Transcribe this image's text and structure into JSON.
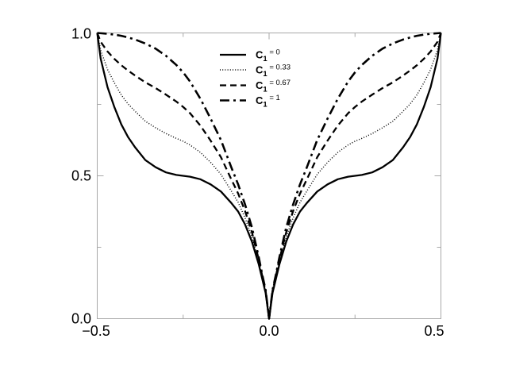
{
  "figure": {
    "background": "#ffffff",
    "frame_color": "#a8a8a8",
    "curve_color": "#000000",
    "text_color": "#000000"
  },
  "axes": {
    "x": {
      "min": -0.5,
      "max": 0.5,
      "major_ticks": [
        -0.5,
        0,
        0.5
      ],
      "minor_ticks": [
        -0.25,
        0.25
      ],
      "tick_labels": [
        "−0.5",
        "0.0",
        "0.5"
      ]
    },
    "y": {
      "min": 0,
      "max": 1,
      "major_ticks": [
        0,
        0.5,
        1
      ],
      "minor_ticks": [
        0.25,
        0.75
      ],
      "tick_labels": [
        "0.0",
        "0.5",
        "1.0"
      ]
    }
  },
  "legend": {
    "items": [
      {
        "style": "solid",
        "symbol": "C",
        "subscript": "1",
        "value": "= 0"
      },
      {
        "style": "dotted",
        "symbol": "C",
        "subscript": "1",
        "value": "= 0.33"
      },
      {
        "style": "dashed",
        "symbol": "C",
        "subscript": "1",
        "value": "= 0.67"
      },
      {
        "style": "dashdot",
        "symbol": "C",
        "subscript": "1",
        "value": "= 1"
      }
    ]
  },
  "chart_data": {
    "type": "line",
    "title": "",
    "xlabel": "",
    "ylabel": "",
    "grid": false,
    "legend_position": "upper-center",
    "xlim": [
      -0.5,
      0.5
    ],
    "ylim": [
      0,
      1
    ],
    "x": [
      -0.5,
      -0.49,
      -0.48,
      -0.47,
      -0.45,
      -0.43,
      -0.41,
      -0.39,
      -0.36,
      -0.33,
      -0.3,
      -0.27,
      -0.25,
      -0.23,
      -0.2,
      -0.17,
      -0.14,
      -0.11,
      -0.09,
      -0.07,
      -0.05,
      -0.03,
      -0.02,
      -0.01,
      0,
      0.01,
      0.02,
      0.03,
      0.05,
      0.07,
      0.09,
      0.11,
      0.14,
      0.17,
      0.2,
      0.23,
      0.25,
      0.27,
      0.3,
      0.33,
      0.36,
      0.39,
      0.41,
      0.43,
      0.45,
      0.47,
      0.48,
      0.49,
      0.5
    ],
    "series": [
      {
        "name": "C1 = 0",
        "style": "solid",
        "values": [
          1,
          0.91,
          0.86,
          0.81,
          0.74,
          0.68,
          0.635,
          0.6,
          0.555,
          0.53,
          0.512,
          0.503,
          0.5,
          0.497,
          0.488,
          0.47,
          0.445,
          0.405,
          0.375,
          0.33,
          0.27,
          0.19,
          0.14,
          0.09,
          0,
          0.09,
          0.14,
          0.19,
          0.27,
          0.33,
          0.375,
          0.405,
          0.445,
          0.47,
          0.488,
          0.497,
          0.5,
          0.503,
          0.512,
          0.53,
          0.555,
          0.6,
          0.635,
          0.68,
          0.74,
          0.81,
          0.86,
          0.91,
          1
        ]
      },
      {
        "name": "C1 = 0.33",
        "style": "dotted",
        "values": [
          1,
          0.94,
          0.906,
          0.872,
          0.825,
          0.783,
          0.751,
          0.726,
          0.691,
          0.668,
          0.648,
          0.631,
          0.621,
          0.608,
          0.582,
          0.547,
          0.505,
          0.447,
          0.407,
          0.353,
          0.287,
          0.198,
          0.145,
          0.093,
          0,
          0.093,
          0.145,
          0.198,
          0.287,
          0.353,
          0.407,
          0.447,
          0.505,
          0.547,
          0.582,
          0.608,
          0.621,
          0.631,
          0.648,
          0.668,
          0.691,
          0.726,
          0.751,
          0.783,
          0.825,
          0.872,
          0.906,
          0.94,
          1
        ]
      },
      {
        "name": "C1 = 0.67",
        "style": "dashed",
        "values": [
          1,
          0.969,
          0.952,
          0.935,
          0.909,
          0.887,
          0.868,
          0.851,
          0.827,
          0.807,
          0.784,
          0.76,
          0.741,
          0.719,
          0.676,
          0.623,
          0.565,
          0.488,
          0.438,
          0.377,
          0.303,
          0.207,
          0.15,
          0.097,
          0,
          0.097,
          0.15,
          0.207,
          0.303,
          0.377,
          0.438,
          0.488,
          0.565,
          0.623,
          0.676,
          0.719,
          0.741,
          0.76,
          0.784,
          0.807,
          0.827,
          0.851,
          0.868,
          0.887,
          0.909,
          0.935,
          0.952,
          0.969,
          1
        ]
      },
      {
        "name": "C1 = 1",
        "style": "dashdot",
        "values": [
          1,
          0.999,
          0.998,
          0.997,
          0.994,
          0.99,
          0.984,
          0.977,
          0.963,
          0.945,
          0.92,
          0.888,
          0.862,
          0.83,
          0.77,
          0.7,
          0.625,
          0.53,
          0.47,
          0.4,
          0.32,
          0.215,
          0.155,
          0.1,
          0,
          0.1,
          0.155,
          0.215,
          0.32,
          0.4,
          0.47,
          0.53,
          0.625,
          0.7,
          0.77,
          0.83,
          0.862,
          0.888,
          0.92,
          0.945,
          0.963,
          0.977,
          0.984,
          0.99,
          0.994,
          0.997,
          0.998,
          0.999,
          1
        ]
      }
    ]
  }
}
